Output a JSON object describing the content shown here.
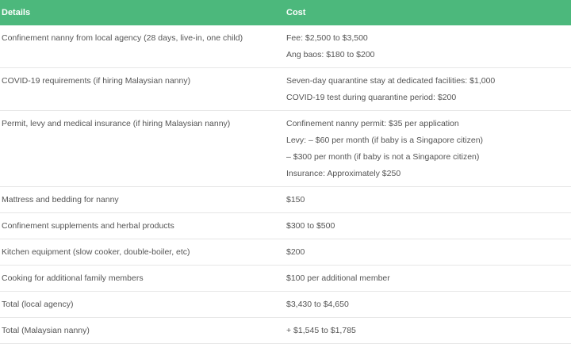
{
  "table": {
    "header": [
      "Details",
      "Cost"
    ],
    "rows": [
      {
        "details": "Confinement nanny from local agency (28 days, live-in, one child)",
        "cost": [
          "Fee: $2,500 to $3,500",
          "Ang baos: $180 to $200"
        ]
      },
      {
        "details": "COVID-19 requirements (if hiring Malaysian nanny)",
        "cost": [
          "Seven-day quarantine stay at dedicated facilities: $1,000",
          "COVID-19 test during quarantine period: $200"
        ]
      },
      {
        "details": "Permit, levy and medical insurance (if hiring Malaysian nanny)",
        "cost": [
          "Confinement nanny permit: $35 per application",
          "Levy: – $60 per month (if baby is a Singapore citizen)",
          "– $300 per month (if baby is not a Singapore citizen)",
          "Insurance: Approximately $250"
        ]
      },
      {
        "details": "Mattress and bedding for nanny",
        "cost": [
          "$150"
        ]
      },
      {
        "details": "Confinement supplements and herbal products",
        "cost": [
          "$300 to $500"
        ]
      },
      {
        "details": "Kitchen equipment (slow cooker, double-boiler, etc)",
        "cost": [
          "$200"
        ]
      },
      {
        "details": "Cooking for additional family members",
        "cost": [
          "$100 per additional member"
        ]
      },
      {
        "details": "Total (local agency)",
        "cost": [
          "$3,430 to $4,650"
        ]
      },
      {
        "details": "Total (Malaysian nanny)",
        "cost": [
          "+ $1,545 to $1,785"
        ]
      }
    ]
  }
}
